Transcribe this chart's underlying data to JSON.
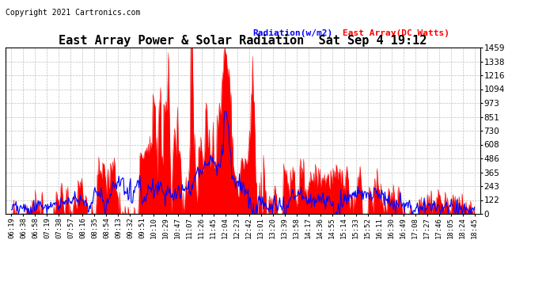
{
  "title": "East Array Power & Solar Radiation  Sat Sep 4 19:12",
  "copyright": "Copyright 2021 Cartronics.com",
  "legend_radiation": "Radiation(w/m2)",
  "legend_east": "East Array(DC Watts)",
  "radiation_color": "blue",
  "east_color": "red",
  "background_color": "#ffffff",
  "grid_color": "#b0b0b0",
  "ymin": 0.0,
  "ymax": 1459.2,
  "yticks": [
    0.0,
    121.6,
    243.2,
    364.8,
    486.4,
    608.0,
    729.6,
    851.2,
    972.8,
    1094.4,
    1216.0,
    1337.6,
    1459.2
  ],
  "x_labels": [
    "06:19",
    "06:38",
    "06:58",
    "07:19",
    "07:38",
    "07:57",
    "08:16",
    "08:35",
    "08:54",
    "09:13",
    "09:32",
    "09:51",
    "10:10",
    "10:29",
    "10:47",
    "11:07",
    "11:26",
    "11:45",
    "12:04",
    "12:23",
    "12:42",
    "13:01",
    "13:20",
    "13:39",
    "13:58",
    "14:17",
    "14:36",
    "14:55",
    "15:14",
    "15:33",
    "15:52",
    "16:11",
    "16:30",
    "16:49",
    "17:08",
    "17:27",
    "17:46",
    "18:05",
    "18:24",
    "18:45"
  ],
  "title_fontsize": 11,
  "copyright_fontsize": 7,
  "legend_fontsize": 8,
  "tick_fontsize": 6.5,
  "ytick_fontsize": 7.5
}
